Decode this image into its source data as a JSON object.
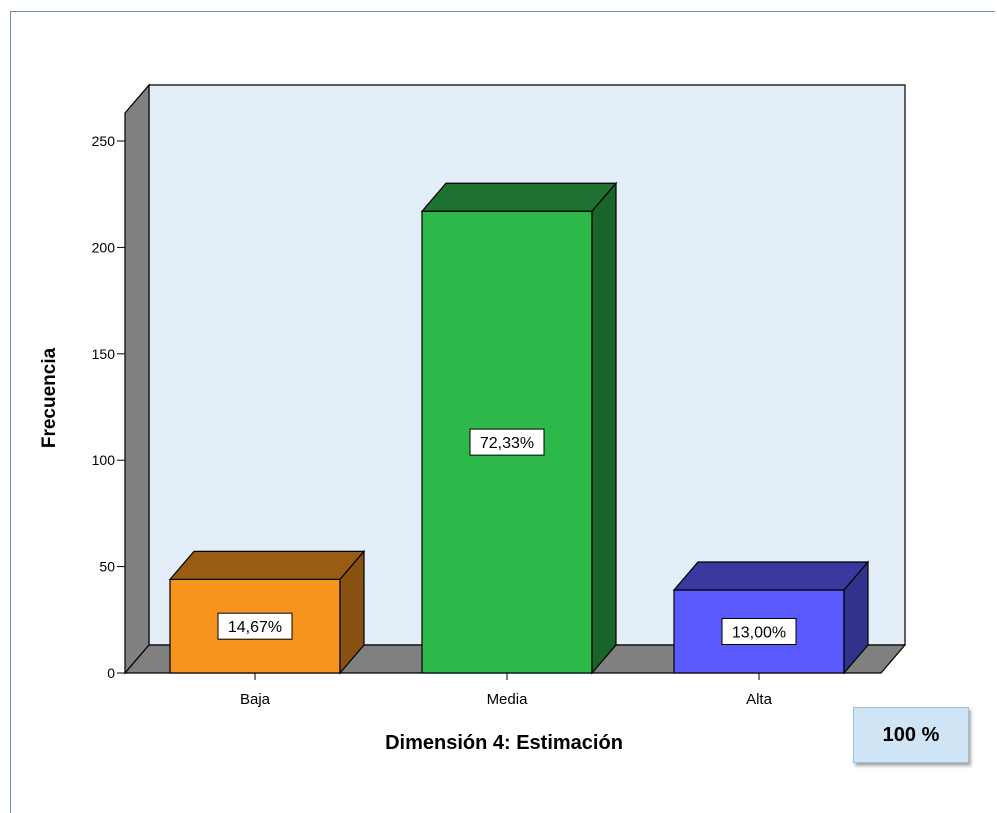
{
  "chart_data": {
    "type": "bar",
    "categories": [
      "Baja",
      "Media",
      "Alta"
    ],
    "values": [
      44,
      217,
      39
    ],
    "data_labels": [
      "14,67%",
      "72,33%",
      "13,00%"
    ],
    "colors": [
      "#f7941e",
      "#2db84a",
      "#5a5aff"
    ],
    "xlabel": "Dimensión 4: Estimación",
    "ylabel": "Frecuencia",
    "ylim": [
      0,
      250
    ],
    "yticks": [
      "0",
      "50",
      "100",
      "150",
      "200",
      "250"
    ],
    "wall_color": "#e3eef9",
    "floor_color": "#808080",
    "style": "3d"
  },
  "badge": {
    "text": "100 %"
  }
}
